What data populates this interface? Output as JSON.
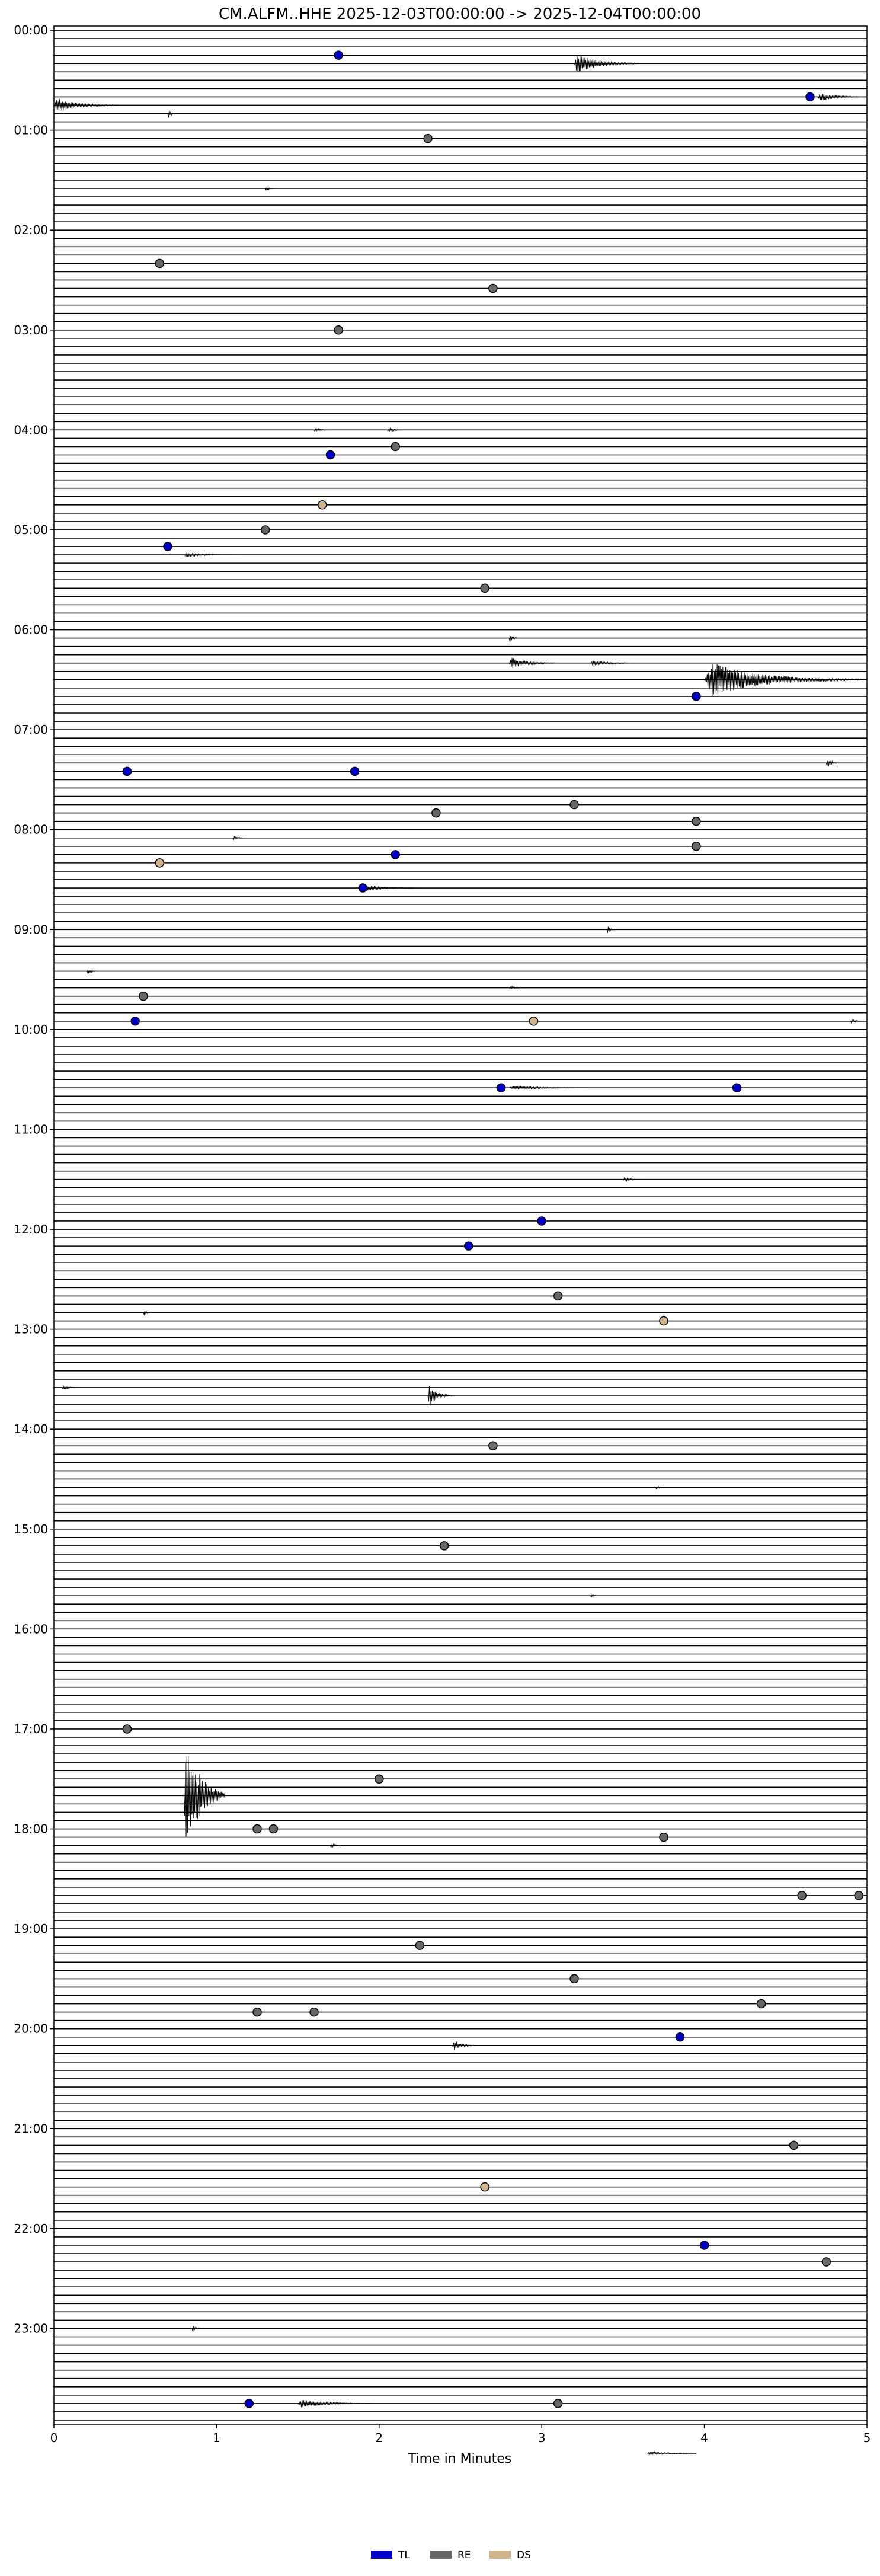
{
  "chart_data": {
    "type": "line",
    "title": "CM.ALFM..HHE  2025-12-03T00:00:00 -> 2025-12-04T00:00:00",
    "xlabel": "Time in Minutes",
    "xlim": [
      0,
      5
    ],
    "x_ticks": [
      "0",
      "1",
      "2",
      "3",
      "4",
      "5"
    ],
    "y_ticks": [
      "00:00",
      "01:00",
      "02:00",
      "03:00",
      "04:00",
      "05:00",
      "06:00",
      "07:00",
      "08:00",
      "09:00",
      "10:00",
      "11:00",
      "12:00",
      "13:00",
      "14:00",
      "15:00",
      "16:00",
      "17:00",
      "18:00",
      "19:00",
      "20:00",
      "21:00",
      "22:00",
      "23:00"
    ],
    "rows_per_hour": 12,
    "row_minutes": 5,
    "grid": false,
    "legend_position": "bottom-center",
    "legend": [
      {
        "label": "TL",
        "color": "#0000cc"
      },
      {
        "label": "RE",
        "color": "#666666"
      },
      {
        "label": "DS",
        "color": "#d2b48c"
      }
    ],
    "events": [
      {
        "hour_row": 3,
        "minute": 1.75,
        "type": "TL"
      },
      {
        "hour_row": 8,
        "minute": 4.65,
        "type": "TL"
      },
      {
        "hour_row": 13,
        "minute": 2.3,
        "type": "RE"
      },
      {
        "hour_row": 28,
        "minute": 0.65,
        "type": "RE"
      },
      {
        "hour_row": 31,
        "minute": 2.7,
        "type": "RE"
      },
      {
        "hour_row": 36,
        "minute": 1.75,
        "type": "RE"
      },
      {
        "hour_row": 50,
        "minute": 2.1,
        "type": "RE"
      },
      {
        "hour_row": 51,
        "minute": 1.7,
        "type": "TL"
      },
      {
        "hour_row": 57,
        "minute": 1.65,
        "type": "DS"
      },
      {
        "hour_row": 60,
        "minute": 1.3,
        "type": "RE"
      },
      {
        "hour_row": 62,
        "minute": 0.7,
        "type": "TL"
      },
      {
        "hour_row": 67,
        "minute": 2.65,
        "type": "RE"
      },
      {
        "hour_row": 80,
        "minute": 3.95,
        "type": "TL"
      },
      {
        "hour_row": 89,
        "minute": 0.45,
        "type": "TL"
      },
      {
        "hour_row": 89,
        "minute": 1.85,
        "type": "TL"
      },
      {
        "hour_row": 93,
        "minute": 3.2,
        "type": "RE"
      },
      {
        "hour_row": 94,
        "minute": 2.35,
        "type": "RE"
      },
      {
        "hour_row": 95,
        "minute": 3.95,
        "type": "RE"
      },
      {
        "hour_row": 98,
        "minute": 3.95,
        "type": "RE"
      },
      {
        "hour_row": 99,
        "minute": 2.1,
        "type": "TL"
      },
      {
        "hour_row": 100,
        "minute": 0.65,
        "type": "DS"
      },
      {
        "hour_row": 103,
        "minute": 1.9,
        "type": "TL"
      },
      {
        "hour_row": 116,
        "minute": 0.55,
        "type": "RE"
      },
      {
        "hour_row": 119,
        "minute": 0.5,
        "type": "TL"
      },
      {
        "hour_row": 119,
        "minute": 2.95,
        "type": "DS"
      },
      {
        "hour_row": 127,
        "minute": 2.75,
        "type": "TL"
      },
      {
        "hour_row": 127,
        "minute": 4.2,
        "type": "TL"
      },
      {
        "hour_row": 143,
        "minute": 3.0,
        "type": "TL"
      },
      {
        "hour_row": 146,
        "minute": 2.55,
        "type": "TL"
      },
      {
        "hour_row": 152,
        "minute": 3.1,
        "type": "RE"
      },
      {
        "hour_row": 155,
        "minute": 3.75,
        "type": "DS"
      },
      {
        "hour_row": 170,
        "minute": 2.7,
        "type": "RE"
      },
      {
        "hour_row": 182,
        "minute": 2.4,
        "type": "RE"
      },
      {
        "hour_row": 204,
        "minute": 0.45,
        "type": "RE"
      },
      {
        "hour_row": 210,
        "minute": 2.0,
        "type": "RE"
      },
      {
        "hour_row": 216,
        "minute": 1.25,
        "type": "RE"
      },
      {
        "hour_row": 216,
        "minute": 1.35,
        "type": "RE"
      },
      {
        "hour_row": 217,
        "minute": 3.75,
        "type": "RE"
      },
      {
        "hour_row": 224,
        "minute": 4.6,
        "type": "RE"
      },
      {
        "hour_row": 224,
        "minute": 4.95,
        "type": "RE"
      },
      {
        "hour_row": 230,
        "minute": 2.25,
        "type": "RE"
      },
      {
        "hour_row": 234,
        "minute": 3.2,
        "type": "RE"
      },
      {
        "hour_row": 237,
        "minute": 4.35,
        "type": "RE"
      },
      {
        "hour_row": 238,
        "minute": 1.25,
        "type": "RE"
      },
      {
        "hour_row": 238,
        "minute": 1.6,
        "type": "RE"
      },
      {
        "hour_row": 241,
        "minute": 3.85,
        "type": "TL"
      },
      {
        "hour_row": 254,
        "minute": 4.55,
        "type": "RE"
      },
      {
        "hour_row": 259,
        "minute": 2.65,
        "type": "DS"
      },
      {
        "hour_row": 266,
        "minute": 4.0,
        "type": "TL"
      },
      {
        "hour_row": 268,
        "minute": 4.75,
        "type": "RE"
      },
      {
        "hour_row": 285,
        "minute": 1.2,
        "type": "TL"
      },
      {
        "hour_row": 285,
        "minute": 3.1,
        "type": "RE"
      }
    ],
    "bursts": [
      {
        "hour_row": 4,
        "minute": 3.2,
        "amp": 1.4,
        "len": 0.4
      },
      {
        "hour_row": 8,
        "minute": 4.7,
        "amp": 0.6,
        "len": 0.35
      },
      {
        "hour_row": 9,
        "minute": 0.0,
        "amp": 1.0,
        "len": 0.4
      },
      {
        "hour_row": 10,
        "minute": 0.7,
        "amp": 0.8,
        "len": 0.05
      },
      {
        "hour_row": 19,
        "minute": 1.3,
        "amp": 0.3,
        "len": 0.08
      },
      {
        "hour_row": 48,
        "minute": 1.6,
        "amp": 0.3,
        "len": 0.12
      },
      {
        "hour_row": 48,
        "minute": 2.05,
        "amp": 0.3,
        "len": 0.12
      },
      {
        "hour_row": 63,
        "minute": 0.8,
        "amp": 0.3,
        "len": 0.35
      },
      {
        "hour_row": 73,
        "minute": 2.8,
        "amp": 0.9,
        "len": 0.05
      },
      {
        "hour_row": 76,
        "minute": 2.8,
        "amp": 0.8,
        "len": 0.3
      },
      {
        "hour_row": 76,
        "minute": 3.3,
        "amp": 0.4,
        "len": 0.3
      },
      {
        "hour_row": 78,
        "minute": 4.0,
        "amp": 2.4,
        "len": 0.95
      },
      {
        "hour_row": 88,
        "minute": 4.75,
        "amp": 0.8,
        "len": 0.08
      },
      {
        "hour_row": 97,
        "minute": 1.1,
        "amp": 0.3,
        "len": 0.1
      },
      {
        "hour_row": 103,
        "minute": 1.9,
        "amp": 0.4,
        "len": 0.35
      },
      {
        "hour_row": 108,
        "minute": 3.4,
        "amp": 0.7,
        "len": 0.05
      },
      {
        "hour_row": 113,
        "minute": 0.2,
        "amp": 0.4,
        "len": 0.08
      },
      {
        "hour_row": 115,
        "minute": 2.8,
        "amp": 0.3,
        "len": 0.1
      },
      {
        "hour_row": 119,
        "minute": 4.9,
        "amp": 0.3,
        "len": 0.1
      },
      {
        "hour_row": 127,
        "minute": 2.8,
        "amp": 0.3,
        "len": 0.6
      },
      {
        "hour_row": 138,
        "minute": 3.5,
        "amp": 0.3,
        "len": 0.15
      },
      {
        "hour_row": 154,
        "minute": 0.55,
        "amp": 0.6,
        "len": 0.05
      },
      {
        "hour_row": 163,
        "minute": 0.05,
        "amp": 0.4,
        "len": 0.1
      },
      {
        "hour_row": 164,
        "minute": 2.3,
        "amp": 1.6,
        "len": 0.15
      },
      {
        "hour_row": 175,
        "minute": 3.7,
        "amp": 0.4,
        "len": 0.05
      },
      {
        "hour_row": 188,
        "minute": 3.3,
        "amp": 0.3,
        "len": 0.05
      },
      {
        "hour_row": 212,
        "minute": 0.8,
        "amp": 9.0,
        "len": 0.25
      },
      {
        "hour_row": 218,
        "minute": 1.7,
        "amp": 0.4,
        "len": 0.1
      },
      {
        "hour_row": 242,
        "minute": 2.45,
        "amp": 0.8,
        "len": 0.15
      },
      {
        "hour_row": 276,
        "minute": 0.85,
        "amp": 0.6,
        "len": 0.05
      },
      {
        "hour_row": 285,
        "minute": 1.5,
        "amp": 0.6,
        "len": 0.45
      },
      {
        "hour_row": 291,
        "minute": 3.65,
        "amp": 0.3,
        "len": 0.3
      }
    ]
  }
}
